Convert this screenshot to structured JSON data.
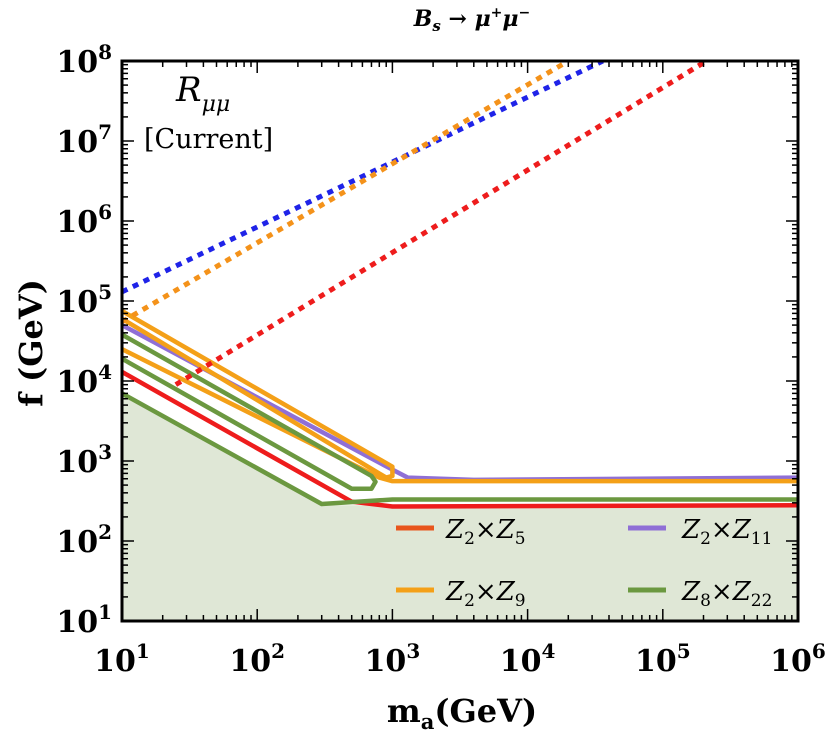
{
  "chart_data": {
    "type": "line",
    "title": "B_s → μ⁺μ⁻",
    "title_parts": {
      "base": "B",
      "sub": "s",
      "arrow": " → ",
      "mu1": "μ",
      "sup1": "+",
      "mu2": "μ",
      "sup2": "−"
    },
    "xlabel": "m_a(GeV)",
    "xlabel_parts": {
      "base": "m",
      "sub": "a",
      "rest": "(GeV)"
    },
    "ylabel": "f (GeV)",
    "x_scale": "log",
    "y_scale": "log",
    "xlim": [
      10,
      1000000
    ],
    "ylim": [
      10,
      100000000
    ],
    "x_ticks": [
      {
        "base": "10",
        "exp": "1",
        "value": 10
      },
      {
        "base": "10",
        "exp": "2",
        "value": 100
      },
      {
        "base": "10",
        "exp": "3",
        "value": 1000
      },
      {
        "base": "10",
        "exp": "4",
        "value": 10000
      },
      {
        "base": "10",
        "exp": "5",
        "value": 100000
      },
      {
        "base": "10",
        "exp": "6",
        "value": 1000000
      }
    ],
    "y_ticks": [
      {
        "base": "10",
        "exp": "1",
        "value": 10
      },
      {
        "base": "10",
        "exp": "2",
        "value": 100
      },
      {
        "base": "10",
        "exp": "3",
        "value": 1000
      },
      {
        "base": "10",
        "exp": "4",
        "value": 10000
      },
      {
        "base": "10",
        "exp": "5",
        "value": 100000
      },
      {
        "base": "10",
        "exp": "6",
        "value": 1000000
      },
      {
        "base": "10",
        "exp": "7",
        "value": 10000000
      },
      {
        "base": "10",
        "exp": "8",
        "value": 100000000
      }
    ],
    "annotation": {
      "R": "R",
      "sub": "μμ",
      "note": "[Current]"
    },
    "fill_region": {
      "color": "#dfe7d6",
      "x": [
        10,
        10,
        300,
        1000000,
        1000000
      ],
      "y": [
        10,
        7000,
        280,
        280,
        10
      ]
    },
    "series": [
      {
        "name": "Z2×Z11 contour",
        "color": "#8f6fd6",
        "style": "solid",
        "x": [
          10,
          1000,
          1300,
          4000,
          1000000
        ],
        "y": [
          50000,
          780,
          620,
          580,
          620
        ]
      },
      {
        "name": "Z2×Z9 outer contour",
        "color": "#f4a018",
        "style": "solid",
        "x": [
          10,
          1000,
          1000,
          900,
          10
        ],
        "y": [
          75000,
          850,
          650,
          620,
          60000
        ]
      },
      {
        "name": "Z2×Z9 inner contour",
        "color": "#f4a018",
        "style": "solid",
        "x": [
          10,
          800,
          1000,
          1000000
        ],
        "y": [
          25000,
          620,
          560,
          560
        ]
      },
      {
        "name": "Z2×Z5 contour",
        "color": "#ee1c1c",
        "style": "solid",
        "x": [
          10,
          500,
          1000,
          1000000
        ],
        "y": [
          13000,
          310,
          270,
          280
        ]
      },
      {
        "name": "Z8×Z22 outer contour",
        "color": "#6b9840",
        "style": "solid",
        "x": [
          10,
          700,
          750,
          700,
          500,
          10
        ],
        "y": [
          38000,
          650,
          550,
          450,
          450,
          19000
        ]
      },
      {
        "name": "Z8×Z22 lower contour",
        "color": "#6b9840",
        "style": "solid",
        "x": [
          10,
          300,
          1000,
          1000000
        ],
        "y": [
          7000,
          290,
          330,
          330
        ]
      },
      {
        "name": "blue dotted",
        "color": "#1f23e8",
        "style": "dotted",
        "x": [
          10,
          36000
        ],
        "y": [
          130000,
          100000000
        ]
      },
      {
        "name": "orange dotted",
        "color": "#f4921a",
        "style": "dotted",
        "x": [
          10,
          20000
        ],
        "y": [
          55000,
          100000000
        ]
      },
      {
        "name": "red dotted",
        "color": "#ee1c1c",
        "style": "dotted",
        "x": [
          25,
          210000
        ],
        "y": [
          9000,
          100000000
        ]
      }
    ],
    "legend": {
      "placement": "bottom-right",
      "entries": [
        {
          "label": "Z2×Z5",
          "a": "Z",
          "a_sub": "2",
          "b": "Z",
          "b_sub": "5",
          "color": "#e8561c"
        },
        {
          "label": "Z2×Z11",
          "a": "Z",
          "a_sub": "2",
          "b": "Z",
          "b_sub": "11",
          "color": "#8f6fd6"
        },
        {
          "label": "Z2×Z9",
          "a": "Z",
          "a_sub": "2",
          "b": "Z",
          "b_sub": "9",
          "color": "#f4a018"
        },
        {
          "label": "Z8×Z22",
          "a": "Z",
          "a_sub": "8",
          "b": "Z",
          "b_sub": "22",
          "color": "#6b9840"
        }
      ]
    }
  }
}
